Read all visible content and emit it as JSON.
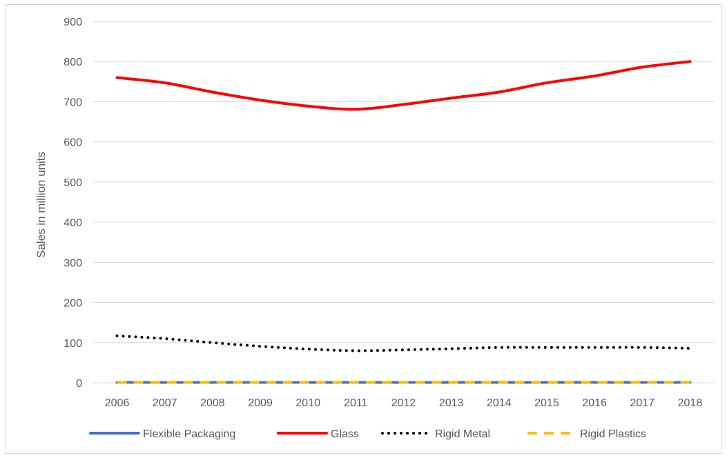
{
  "chart_data": {
    "type": "line",
    "title": "",
    "xlabel": "",
    "ylabel": "Sales in million units",
    "categories": [
      "2006",
      "2007",
      "2008",
      "2009",
      "2010",
      "2011",
      "2012",
      "2013",
      "2014",
      "2015",
      "2016",
      "2017",
      "2018"
    ],
    "yticks": [
      "0",
      "100",
      "200",
      "300",
      "400",
      "500",
      "600",
      "700",
      "800",
      "900"
    ],
    "ylim": [
      0,
      900
    ],
    "grid": true,
    "legend_position": "bottom",
    "series": [
      {
        "name": "Flexible Packaging",
        "values": [
          1,
          1,
          1,
          1,
          1,
          1,
          1,
          1,
          1,
          1,
          1,
          1,
          1
        ],
        "color": "#4472c4",
        "style": "solid"
      },
      {
        "name": "Glass",
        "values": [
          760,
          747,
          724,
          704,
          689,
          681,
          693,
          709,
          724,
          747,
          764,
          786,
          800
        ],
        "color": "#ff0000",
        "style": "solid"
      },
      {
        "name": "Rigid Metal",
        "values": [
          117,
          110,
          100,
          91,
          84,
          80,
          82,
          85,
          88,
          88,
          88,
          88,
          86
        ],
        "color": "#000000",
        "style": "dotted"
      },
      {
        "name": "Rigid Plastics",
        "values": [
          1,
          1,
          1,
          1,
          1,
          1,
          1,
          1,
          1,
          1,
          1,
          1,
          1
        ],
        "color": "#ffc000",
        "style": "dashed"
      }
    ]
  }
}
